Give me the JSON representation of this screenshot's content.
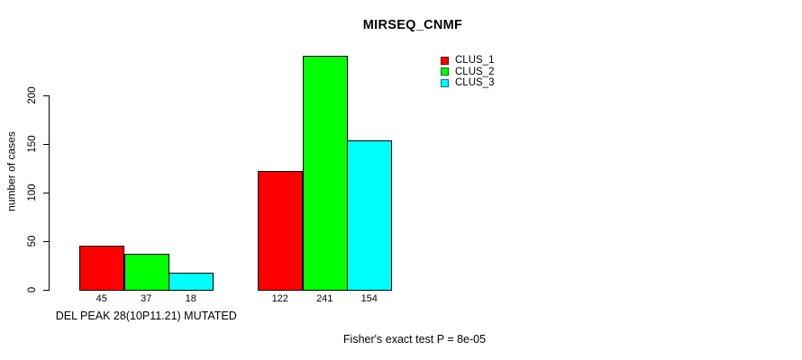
{
  "chart_data": {
    "type": "bar",
    "title": "MIRSEQ_CNMF",
    "ylabel": "number of cases",
    "xlabel": "",
    "caption": "Fisher's exact test P = 8e-05",
    "group_labels": [
      "DEL PEAK 28(10P11.21) MUTATED",
      ""
    ],
    "series": [
      {
        "name": "CLUS_1",
        "color": "#ff0000",
        "values": [
          45,
          122
        ]
      },
      {
        "name": "CLUS_2",
        "color": "#00ff00",
        "values": [
          37,
          241
        ]
      },
      {
        "name": "CLUS_3",
        "color": "#00ffff",
        "values": [
          18,
          154
        ]
      }
    ],
    "yticks": [
      0,
      50,
      100,
      150,
      200
    ],
    "ylim": [
      0,
      250
    ],
    "grid": false,
    "legend": {
      "position": "top-right"
    },
    "colors": {
      "axis": "#000000",
      "text": "#000000",
      "background": "#ffffff"
    }
  }
}
